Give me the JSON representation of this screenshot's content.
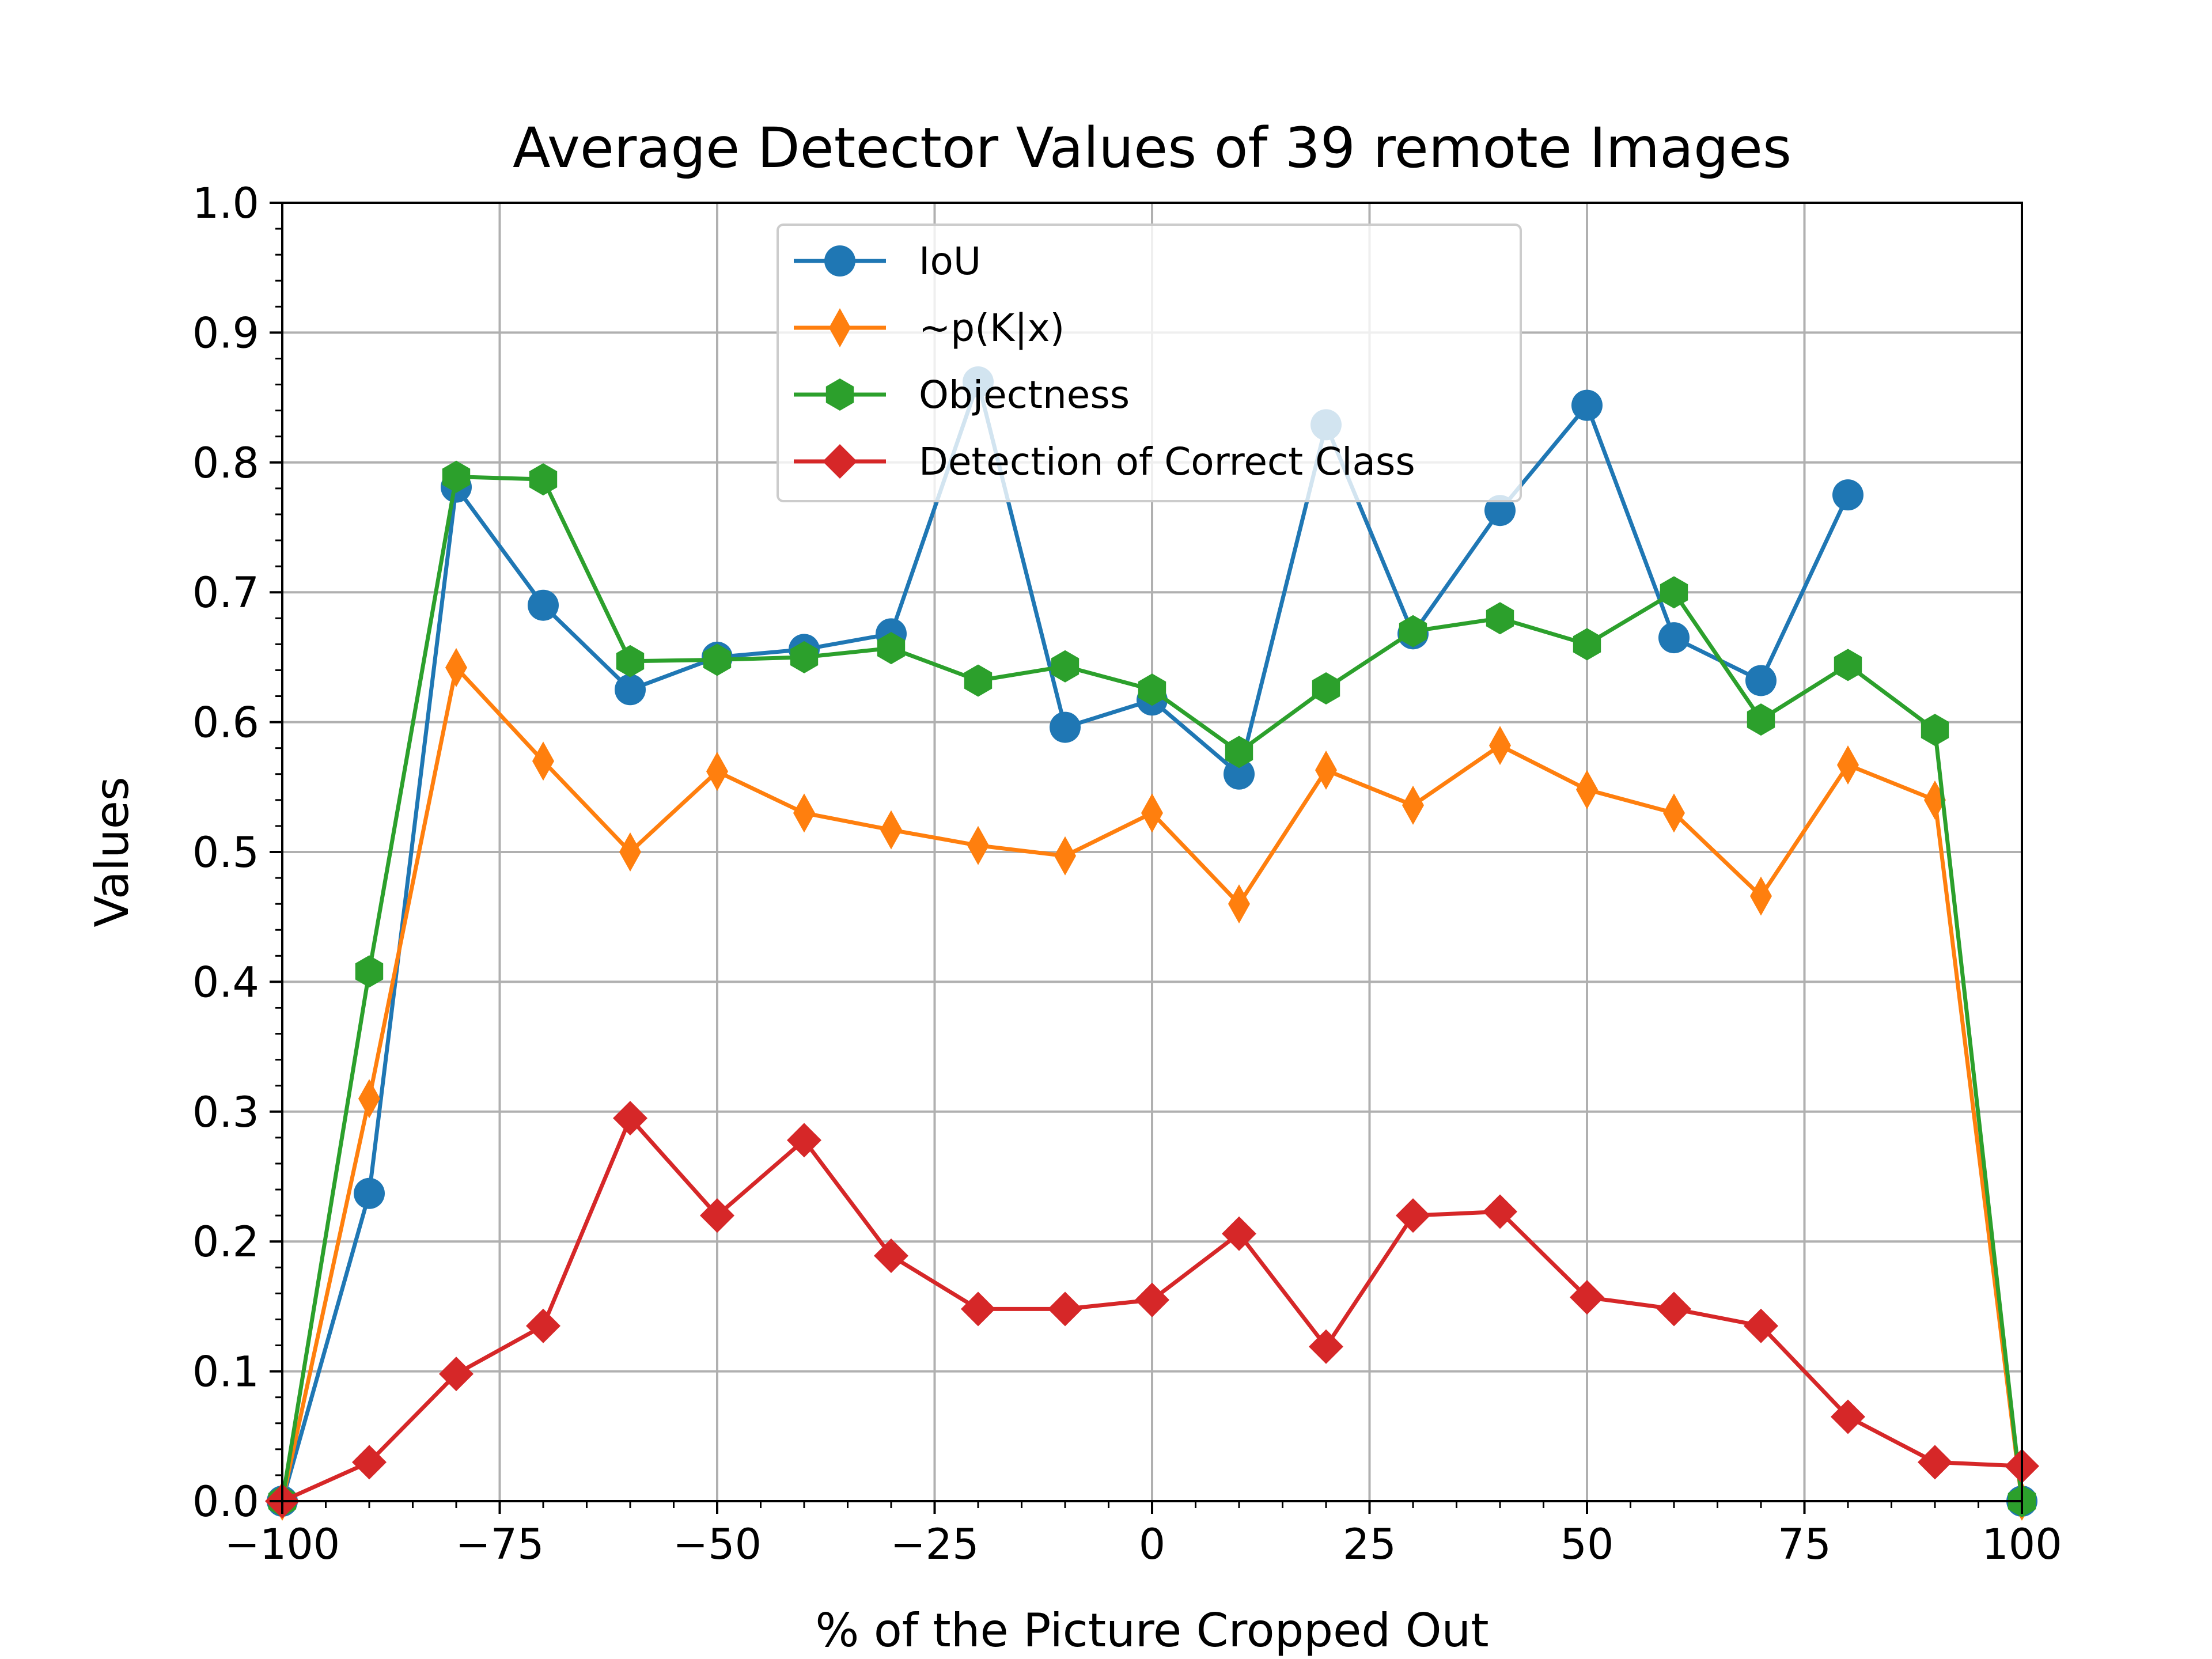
{
  "chart_data": {
    "type": "line",
    "title": "Average Detector Values of 39 remote Images",
    "xlabel": "% of the Picture Cropped Out",
    "ylabel": "Values",
    "xlim": [
      -100,
      100
    ],
    "ylim": [
      0.0,
      1.0
    ],
    "xticks": [
      -100,
      -75,
      -50,
      -25,
      0,
      25,
      50,
      75,
      100
    ],
    "xtick_labels": [
      "−100",
      "−75",
      "−50",
      "−25",
      "0",
      "25",
      "50",
      "75",
      "100"
    ],
    "yticks": [
      0.0,
      0.1,
      0.2,
      0.3,
      0.4,
      0.5,
      0.6,
      0.7,
      0.8,
      0.9,
      1.0
    ],
    "ytick_labels": [
      "0.0",
      "0.1",
      "0.2",
      "0.3",
      "0.4",
      "0.5",
      "0.6",
      "0.7",
      "0.8",
      "0.9",
      "1.0"
    ],
    "grid": true,
    "legend_position": "top-center",
    "x": [
      -100,
      -90,
      -80,
      -70,
      -60,
      -50,
      -40,
      -30,
      -20,
      -10,
      0,
      10,
      20,
      30,
      40,
      50,
      60,
      70,
      80,
      90,
      100
    ],
    "series": [
      {
        "name": "IoU",
        "color": "#1f77b4",
        "marker": "circle",
        "values": [
          0.0,
          0.237,
          0.781,
          0.69,
          0.625,
          0.65,
          0.656,
          0.668,
          0.862,
          0.596,
          0.617,
          0.56,
          0.829,
          0.668,
          0.763,
          0.844,
          0.665,
          0.632,
          0.775,
          null,
          0.0
        ]
      },
      {
        "name": "~p(K|x)",
        "color": "#ff7f0e",
        "marker": "thin_diamond",
        "values": [
          0.0,
          0.31,
          0.642,
          0.57,
          0.5,
          0.562,
          0.53,
          0.517,
          0.505,
          0.497,
          0.53,
          0.46,
          0.563,
          0.536,
          0.582,
          0.548,
          0.53,
          0.466,
          0.567,
          0.54,
          0.0
        ]
      },
      {
        "name": "Objectness",
        "color": "#2ca02c",
        "marker": "hexagon",
        "values": [
          0.0,
          0.408,
          0.789,
          0.787,
          0.647,
          0.648,
          0.65,
          0.657,
          0.632,
          0.643,
          0.625,
          0.577,
          0.626,
          0.67,
          0.68,
          0.66,
          0.7,
          0.602,
          0.644,
          0.594,
          0.0
        ]
      },
      {
        "name": "Detection of Correct Class",
        "color": "#d62728",
        "marker": "diamond",
        "values": [
          0.0,
          0.03,
          0.098,
          0.135,
          0.295,
          0.22,
          0.278,
          0.189,
          0.148,
          0.148,
          0.155,
          0.206,
          0.119,
          0.22,
          0.223,
          0.157,
          0.148,
          0.135,
          0.065,
          0.03,
          0.027
        ]
      }
    ]
  }
}
